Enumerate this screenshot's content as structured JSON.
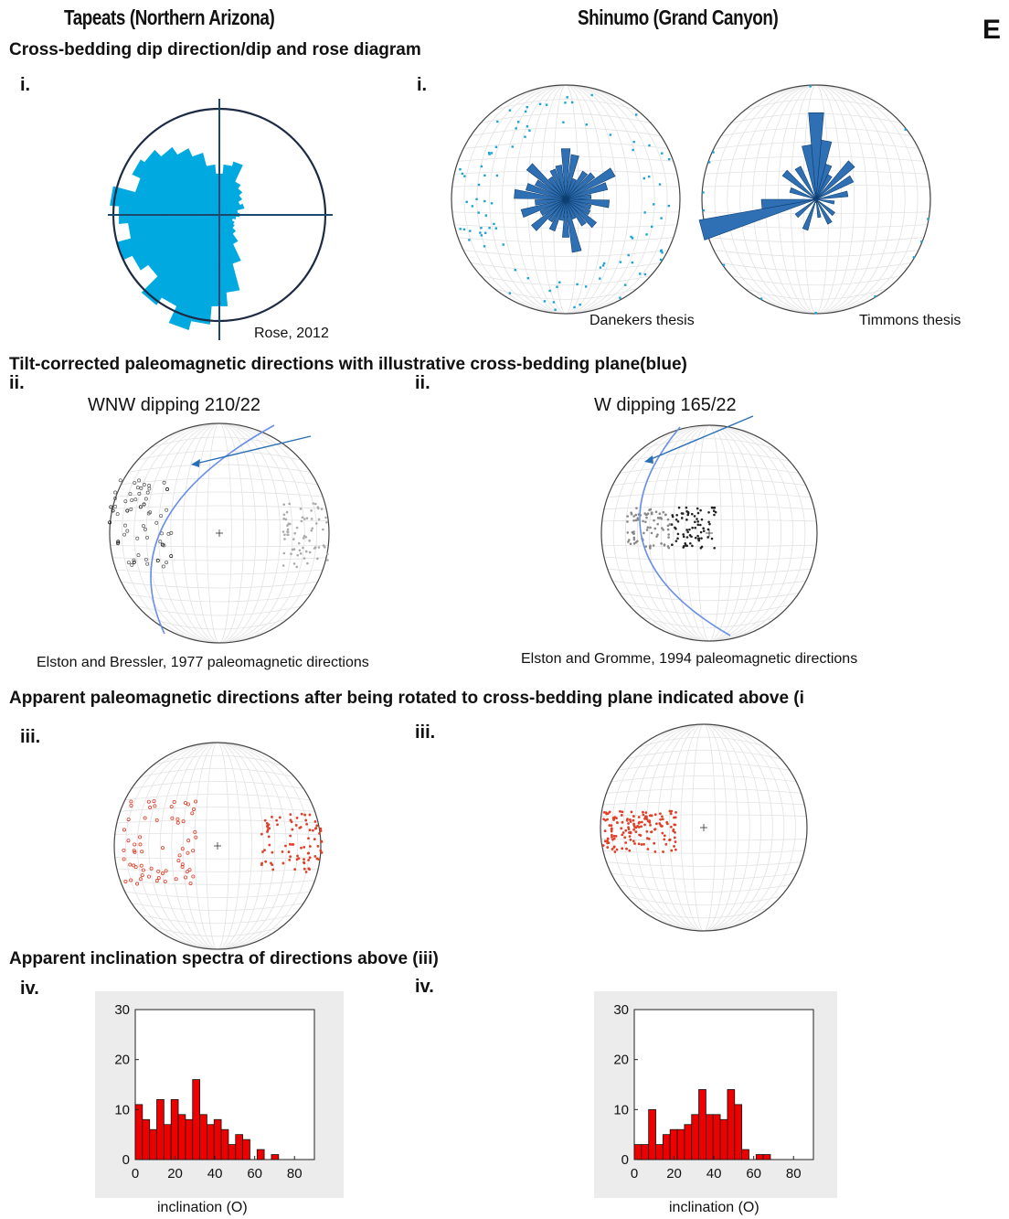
{
  "panel_letter": "E",
  "columns": {
    "left": "Tapeats (Northern Arizona)",
    "right": "Shinumo (Grand Canyon)"
  },
  "sections": {
    "s1": "Cross-bedding dip direction/dip and rose diagram",
    "s2": "Tilt-corrected paleomagnetic directions with illustrative cross-bedding plane(blue)",
    "s3": "Apparent paleomagnetic directions after being rotated to cross-bedding plane indicated above (i",
    "s4": "Apparent inclination spectra of directions above (iii)"
  },
  "labels": {
    "i": "i.",
    "ii": "ii.",
    "iii": "iii.",
    "iv": "iv."
  },
  "captions": {
    "rose": "Rose, 2012",
    "danekers": "Danekers thesis",
    "timmons": "Timmons thesis",
    "elston_bressler": "Elston and Bressler, 1977 paleomagnetic directions",
    "elston_gromme": "Elston and Gromme, 1994 paleomagnetic directions"
  },
  "planes": {
    "left": "WNW dipping 210/22",
    "right": "W dipping 165/22"
  },
  "colors": {
    "rose_fill": "#00a9e0",
    "rose_dark": "#1f5f9e",
    "plane_blue": "#5577dd",
    "arrow_blue": "#2a6fb5",
    "red_points": "#e0402a",
    "hist_red": "#ee0000"
  },
  "chart_data": [
    {
      "type": "bar",
      "xlabel": "inclination (O)",
      "ylabel": "",
      "xlim": [
        0,
        90
      ],
      "ylim": [
        0,
        30
      ],
      "xticks": [
        0,
        20,
        40,
        60,
        80
      ],
      "yticks": [
        0,
        10,
        20,
        30
      ],
      "bin_width": 3.6,
      "bin_starts": [
        0,
        3.6,
        7.2,
        10.8,
        14.4,
        18,
        21.6,
        25.2,
        28.8,
        32.4,
        36,
        39.6,
        43.2,
        46.8,
        50.4,
        54,
        57.6,
        61.2,
        64.8,
        68.4,
        72
      ],
      "values": [
        11,
        8,
        6,
        12,
        7,
        12,
        9,
        8,
        16,
        9,
        7,
        8,
        6,
        3,
        5,
        4,
        0,
        2,
        0,
        1,
        0
      ]
    },
    {
      "type": "bar",
      "xlabel": "inclination (O)",
      "ylabel": "",
      "xlim": [
        0,
        90
      ],
      "ylim": [
        0,
        30
      ],
      "xticks": [
        0,
        20,
        40,
        60,
        80
      ],
      "yticks": [
        0,
        10,
        20,
        30
      ],
      "bin_width": 3.6,
      "bin_starts": [
        0,
        3.6,
        7.2,
        10.8,
        14.4,
        18,
        21.6,
        25.2,
        28.8,
        32.4,
        36,
        39.6,
        43.2,
        46.8,
        50.4,
        54,
        57.6,
        61.2,
        64.8
      ],
      "values": [
        3,
        3,
        10,
        3,
        5,
        6,
        6,
        7,
        9,
        14,
        9,
        9,
        8,
        14,
        11,
        2,
        0,
        1,
        1
      ]
    }
  ]
}
